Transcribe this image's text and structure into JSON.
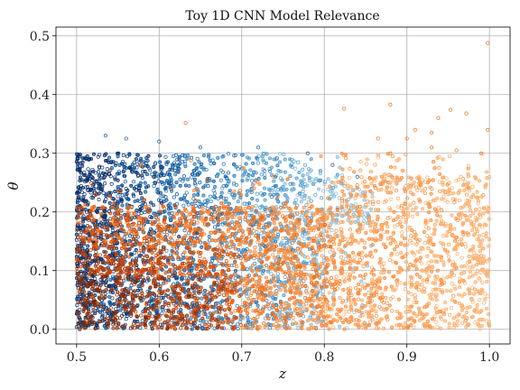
{
  "chart_data": {
    "type": "scatter",
    "title": "Toy 1D CNN Model Relevance",
    "xlabel": "z",
    "ylabel": "θ",
    "xlim": [
      0.475,
      1.025
    ],
    "ylim": [
      -0.025,
      0.515
    ],
    "x_ticks": [
      0.5,
      0.6,
      0.7,
      0.8,
      0.9,
      1.0
    ],
    "x_tick_labels": [
      "0.5",
      "0.6",
      "0.7",
      "0.8",
      "0.9",
      "1.0"
    ],
    "y_ticks": [
      0.0,
      0.1,
      0.2,
      0.3,
      0.4,
      0.5
    ],
    "y_tick_labels": [
      "0.0",
      "0.1",
      "0.2",
      "0.3",
      "0.4",
      "0.5"
    ],
    "grid": true,
    "legend": "none",
    "colormaps": {
      "blue_series": [
        "#08306b",
        "#0b559f",
        "#2b7bba",
        "#539ecd",
        "#89bedc"
      ],
      "orange_series": [
        "#7f2704",
        "#a63603",
        "#d94801",
        "#f16913",
        "#fd8d3c",
        "#fdae6b"
      ]
    },
    "series": [
      {
        "color": "#1f5fa8",
        "x_range": [
          0.5,
          0.86
        ],
        "y_range": [
          0.0,
          0.3
        ],
        "density": "high near z=0.5-0.65, fading toward z=0.86",
        "outliers": [
          {
            "x": 0.535,
            "y": 0.33
          },
          {
            "x": 0.56,
            "y": 0.325
          },
          {
            "x": 0.6,
            "y": 0.32
          },
          {
            "x": 0.65,
            "y": 0.31
          },
          {
            "x": 0.72,
            "y": 0.31
          },
          {
            "x": 0.78,
            "y": 0.3
          },
          {
            "x": 0.81,
            "y": 0.28
          },
          {
            "x": 0.84,
            "y": 0.26
          }
        ]
      },
      {
        "color": "#f07820",
        "x_range": [
          0.5,
          1.0
        ],
        "y_range": [
          0.0,
          0.3
        ],
        "density": "dense below y=0.2, dark orange near z=0.5-0.65",
        "outliers": [
          {
            "x": 0.632,
            "y": 0.352
          },
          {
            "x": 0.824,
            "y": 0.376
          },
          {
            "x": 0.88,
            "y": 0.383
          },
          {
            "x": 0.938,
            "y": 0.36
          },
          {
            "x": 0.953,
            "y": 0.374
          },
          {
            "x": 0.972,
            "y": 0.368
          },
          {
            "x": 0.998,
            "y": 0.488
          },
          {
            "x": 0.998,
            "y": 0.34
          },
          {
            "x": 0.91,
            "y": 0.34
          },
          {
            "x": 0.93,
            "y": 0.335
          },
          {
            "x": 0.865,
            "y": 0.325
          },
          {
            "x": 0.9,
            "y": 0.325
          },
          {
            "x": 0.88,
            "y": 0.3
          },
          {
            "x": 0.93,
            "y": 0.31
          },
          {
            "x": 0.96,
            "y": 0.305
          },
          {
            "x": 0.99,
            "y": 0.3
          }
        ]
      }
    ]
  }
}
